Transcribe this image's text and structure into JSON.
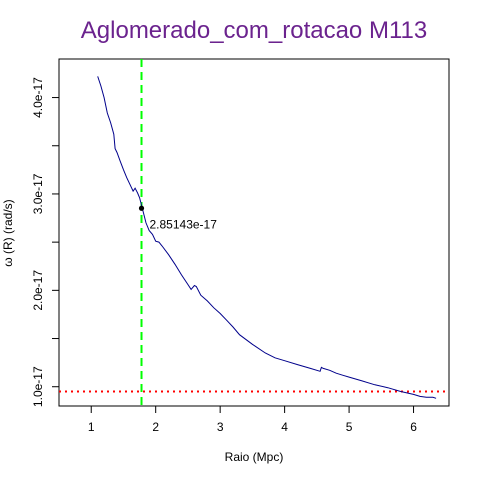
{
  "chart_data": {
    "type": "line",
    "title": "Aglomerado_com_rotacao M113",
    "xlabel": "Raio (Mpc)",
    "ylabel": "ω (R) (rad/s)",
    "xlim": [
      0.5,
      6.55
    ],
    "ylim": [
      8e-18,
      4.4e-17
    ],
    "xticks": [
      1,
      2,
      3,
      4,
      5,
      6
    ],
    "xtick_labels": [
      "1",
      "2",
      "3",
      "4",
      "5",
      "6"
    ],
    "yticks": [
      1e-17,
      1.5e-17,
      2e-17,
      2.5e-17,
      3e-17,
      3.5e-17,
      4e-17
    ],
    "ytick_labels": [
      "1.0e-17",
      "",
      "2.0e-17",
      "",
      "3.0e-17",
      "",
      "4.0e-17"
    ],
    "grid": false,
    "series": [
      {
        "color": "#00008b",
        "x": [
          1.1,
          1.15,
          1.2,
          1.25,
          1.3,
          1.35,
          1.37,
          1.4,
          1.45,
          1.5,
          1.55,
          1.6,
          1.65,
          1.68,
          1.72,
          1.75,
          1.8,
          1.85,
          1.9,
          1.95,
          2.0,
          2.05,
          2.1,
          2.2,
          2.3,
          2.4,
          2.5,
          2.55,
          2.6,
          2.63,
          2.7,
          2.8,
          2.9,
          3.0,
          3.1,
          3.2,
          3.3,
          3.5,
          3.7,
          3.85,
          4.0,
          4.2,
          4.4,
          4.55,
          4.57,
          4.6,
          4.7,
          4.8,
          4.9,
          5.0,
          5.2,
          5.4,
          5.6,
          5.8,
          6.0,
          6.1,
          6.2,
          6.3,
          6.35
        ],
        "y": [
          4.22e-17,
          4.12e-17,
          4e-17,
          3.84e-17,
          3.74e-17,
          3.62e-17,
          3.47e-17,
          3.43e-17,
          3.34e-17,
          3.25e-17,
          3.17e-17,
          3.1e-17,
          3.03e-17,
          3.06e-17,
          3.01e-17,
          2.96e-17,
          2.83e-17,
          2.7e-17,
          2.62e-17,
          2.58e-17,
          2.51e-17,
          2.5e-17,
          2.46e-17,
          2.37e-17,
          2.27e-17,
          2.16e-17,
          2.06e-17,
          2.01e-17,
          2.05e-17,
          2.04e-17,
          1.95e-17,
          1.89e-17,
          1.82e-17,
          1.76e-17,
          1.69e-17,
          1.62e-17,
          1.54e-17,
          1.44e-17,
          1.35e-17,
          1.3e-17,
          1.27e-17,
          1.23e-17,
          1.19e-17,
          1.16e-17,
          1.2e-17,
          1.19e-17,
          1.17e-17,
          1.14e-17,
          1.12e-17,
          1.1e-17,
          1.06e-17,
          1.02e-17,
          9.9e-18,
          9.5e-18,
          9.2e-18,
          9e-18,
          8.9e-18,
          8.9e-18,
          8.8e-18
        ]
      }
    ],
    "vline": {
      "x": 1.78,
      "color": "#00ff00",
      "style": "dashed"
    },
    "hline": {
      "y": 9.5e-18,
      "color": "#ff0000",
      "style": "dotted"
    },
    "point": {
      "x": 1.78,
      "y": 2.85143e-17,
      "label": "2.85143e-17",
      "color": "#000000"
    },
    "title_color": "#6b238e"
  }
}
